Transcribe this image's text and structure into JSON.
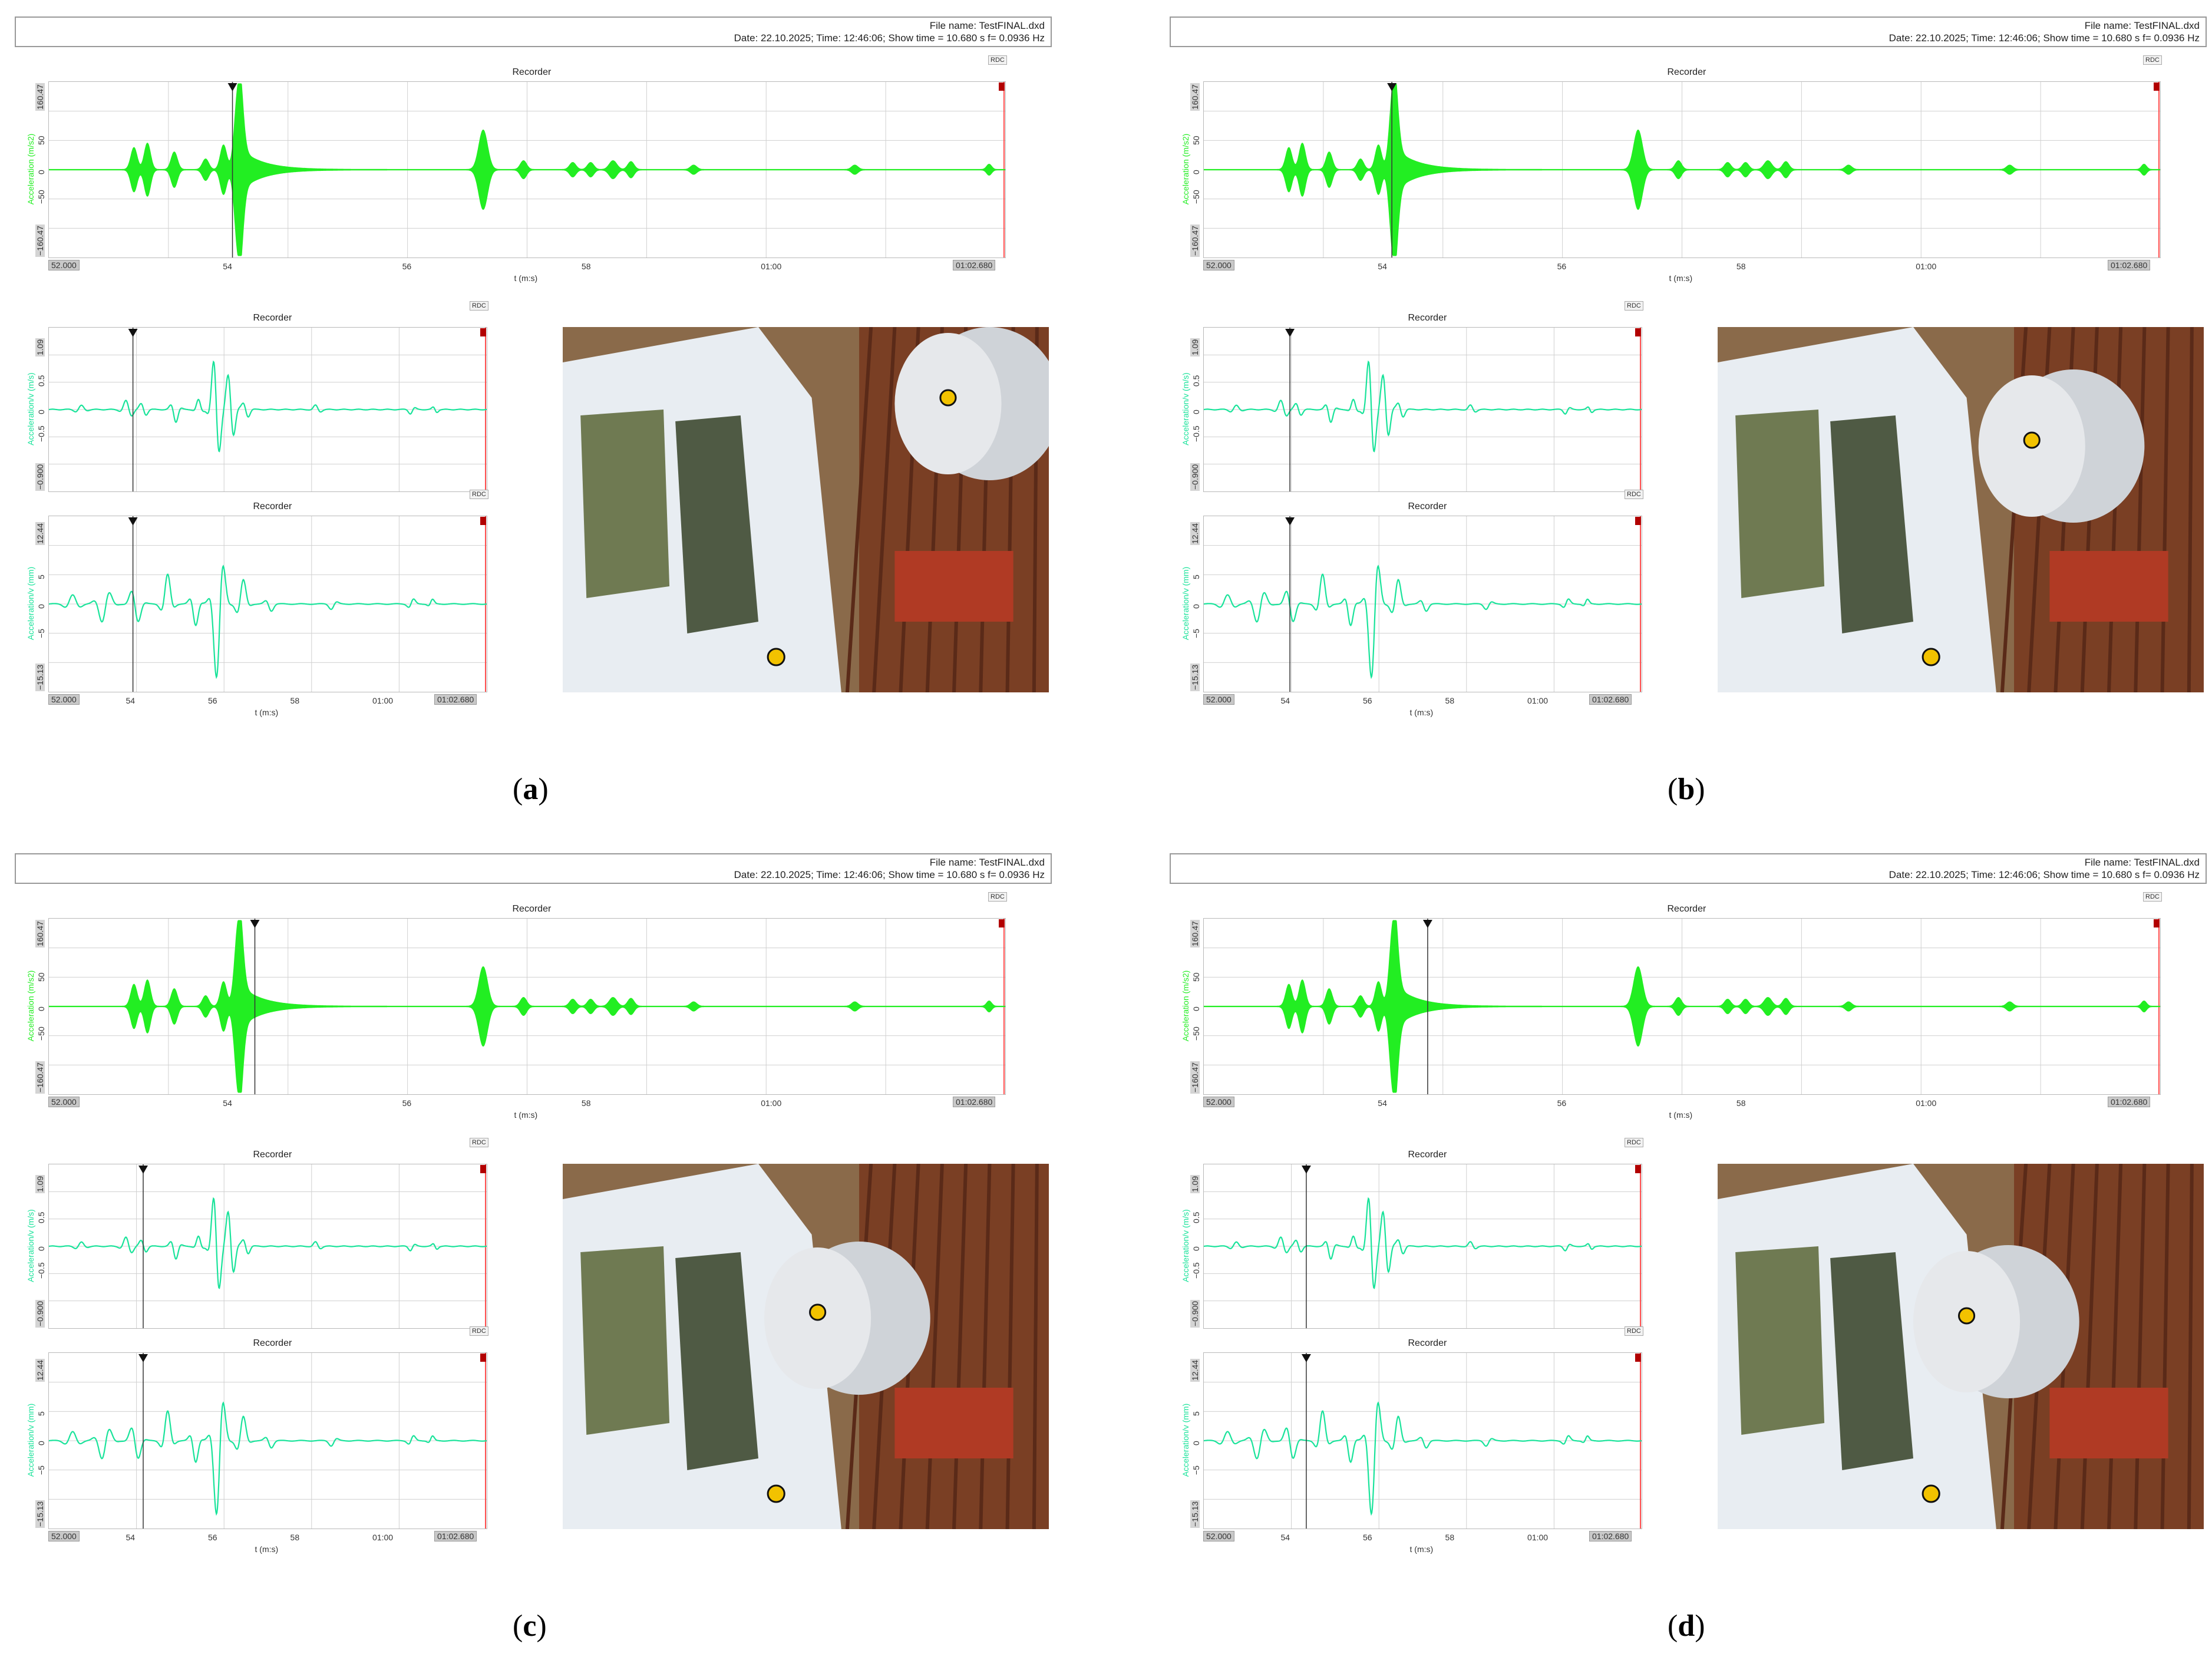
{
  "header": {
    "file_name": "File name: TestFINAL.dxd",
    "info_line": "Date: 22.10.2025; Time: 12:46:06; Show time = 10.680 s  f= 0.0936 Hz"
  },
  "rdc_label": "RDC",
  "recorder_title": "Recorder",
  "x_axis_label": "t (m:s)",
  "colors": {
    "accel_trace": "#22ee22",
    "vel_disp_trace": "#19e39a",
    "grid": "#d0d0d0",
    "limit_line": "#ff4d4d",
    "cursor": "#333333"
  },
  "charts": {
    "acceleration": {
      "ylabel": "Acceleration (m/s2)",
      "ytick_top": "160.47",
      "ytick_bottom": "−160.47",
      "yticks": [
        "50",
        "0",
        "−50"
      ],
      "xticks": [
        "54",
        "56",
        "58",
        "01:00"
      ],
      "x_start": "52.000",
      "x_end": "01:02.680"
    },
    "velocity": {
      "ylabel": "Acceleration/v (m/s)",
      "ytick_top": "1.09",
      "ytick_bottom": "−0.900",
      "yticks": [
        "0.5",
        "0",
        "−0.5"
      ]
    },
    "displacement": {
      "ylabel": "Acceleration/v (mm)",
      "ytick_top": "12.44",
      "ytick_bottom": "−15.13",
      "yticks": [
        "5",
        "0",
        "−5"
      ],
      "xticks": [
        "54",
        "56",
        "58",
        "01:00"
      ],
      "x_start": "52.000",
      "x_end": "01:02.680"
    }
  },
  "panels": [
    {
      "caption_open": "(",
      "caption_letter": "a",
      "caption_close": ")",
      "cursor_time_s": 54.05
    },
    {
      "caption_open": "(",
      "caption_letter": "b",
      "caption_close": ")",
      "cursor_time_s": 54.1
    },
    {
      "caption_open": "(",
      "caption_letter": "c",
      "caption_close": ")",
      "cursor_time_s": 54.3
    },
    {
      "caption_open": "(",
      "caption_letter": "d",
      "caption_close": ")",
      "cursor_time_s": 54.5
    }
  ]
}
